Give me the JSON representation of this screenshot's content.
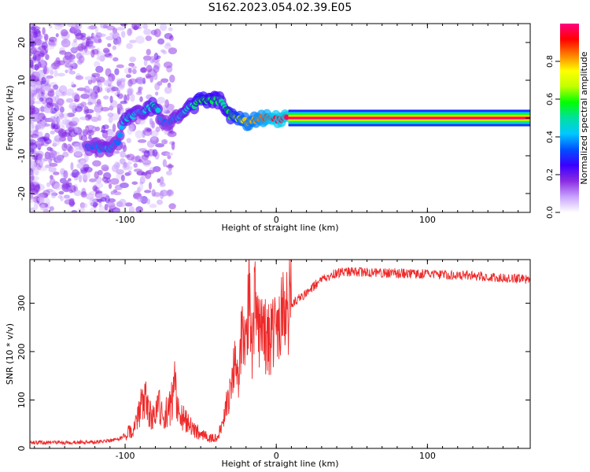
{
  "title": "S162.2023.054.02.39.E05",
  "chart_data": [
    {
      "type": "heatmap",
      "xlabel": "Height of straight line (km)",
      "ylabel": "Frequency (Hz)",
      "xlim": [
        -163,
        168
      ],
      "ylim": [
        -25,
        25
      ],
      "xticks": [
        -100,
        0,
        100
      ],
      "yticks": [
        -20,
        -10,
        0,
        10,
        20
      ],
      "colorbar": {
        "label": "Normalized spectral amplitude",
        "range": [
          0,
          1
        ],
        "ticks": [
          "0.0",
          "0.2",
          "0.4",
          "0.6",
          "0.8"
        ],
        "colors": [
          "#ffffff",
          "#c8a2ff",
          "#8a2be2",
          "#3a00ff",
          "#0050ff",
          "#00c8ff",
          "#00e0a0",
          "#00ff00",
          "#c0ff00",
          "#ffff00",
          "#ff8000",
          "#ff0000",
          "#ff0080"
        ]
      },
      "ridge": {
        "x": [
          -120,
          -112,
          -105,
          -100,
          -95,
          -90,
          -85,
          -80,
          -75,
          -70,
          -65,
          -60,
          -55,
          -50,
          -45,
          -40,
          -35,
          -30,
          -25,
          -20,
          -15,
          -10,
          -5,
          0,
          5,
          10,
          50,
          100,
          168
        ],
        "y": [
          -7.5,
          -8.5,
          -6.5,
          0,
          0.5,
          1.5,
          2.5,
          3.5,
          -1.5,
          -0.5,
          0,
          2,
          3.5,
          4.5,
          4.8,
          4.6,
          4.2,
          0.5,
          -0.3,
          -1,
          -0.8,
          -0.2,
          0.2,
          -0.5,
          0,
          0,
          0,
          0,
          0
        ],
        "amplitude": [
          0.35,
          0.4,
          0.35,
          0.45,
          0.45,
          0.4,
          0.45,
          0.5,
          0.35,
          0.35,
          0.4,
          0.45,
          0.5,
          0.6,
          0.55,
          0.55,
          0.5,
          0.6,
          0.7,
          0.8,
          0.8,
          0.85,
          0.9,
          0.95,
          0.95,
          1.0,
          1.0,
          1.0,
          1.0
        ]
      }
    },
    {
      "type": "line",
      "xlabel": "Height of straight line (km)",
      "ylabel": "SNR (10 * v/v)",
      "xlim": [
        -163,
        168
      ],
      "ylim": [
        0,
        390
      ],
      "xticks": [
        -100,
        0,
        100
      ],
      "yticks": [
        0,
        100,
        200,
        300
      ],
      "color": "#ee2a2a",
      "x": [
        -163,
        -140,
        -120,
        -105,
        -100,
        -95,
        -92,
        -88,
        -82,
        -78,
        -75,
        -70,
        -67,
        -65,
        -60,
        -55,
        -50,
        -45,
        -40,
        -38,
        -36,
        -33,
        -30,
        -28,
        -25,
        -22,
        -20,
        -18,
        -16,
        -14,
        -12,
        -10,
        -8,
        -5,
        -2,
        0,
        3,
        6,
        10,
        15,
        20,
        30,
        40,
        50,
        60,
        80,
        100,
        120,
        140,
        160,
        168
      ],
      "y": [
        12,
        12,
        13,
        18,
        28,
        40,
        55,
        110,
        60,
        90,
        70,
        85,
        130,
        80,
        55,
        40,
        30,
        22,
        20,
        30,
        50,
        90,
        120,
        180,
        150,
        260,
        200,
        340,
        220,
        300,
        250,
        240,
        230,
        230,
        235,
        240,
        260,
        280,
        300,
        310,
        320,
        350,
        362,
        365,
        363,
        362,
        360,
        358,
        355,
        350,
        348
      ]
    }
  ]
}
